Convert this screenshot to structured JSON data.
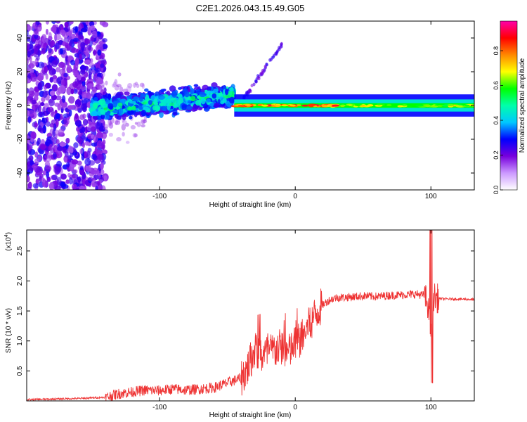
{
  "title": "C2E1.2026.043.15.49.G05",
  "chart_data": [
    {
      "type": "heatmap",
      "name": "spectrogram",
      "xlabel": "Height of straight line (km)",
      "ylabel": "Frequency (Hz)",
      "xlim": [
        -198,
        132
      ],
      "ylim": [
        -50,
        50
      ],
      "xticks": [
        -100,
        0,
        100
      ],
      "xtick_labels": [
        "-100",
        "0",
        "100"
      ],
      "yticks": [
        -40,
        -20,
        0,
        20,
        40
      ],
      "ytick_labels": [
        "-40",
        "-20",
        "0",
        "20",
        "40"
      ],
      "colorbar": {
        "label": "Normalized spectral amplitude",
        "range": [
          0,
          0.97
        ],
        "ticks": [
          0.0,
          0.2,
          0.4,
          0.6,
          0.8
        ],
        "tick_labels": [
          "0.0",
          "0.2",
          "0.4",
          "0.6",
          "0.8"
        ],
        "colormap": [
          "#ffffff",
          "#cc99ff",
          "#7700dd",
          "#0000ff",
          "#00c8ff",
          "#00ffaa",
          "#00ff00",
          "#ffff00",
          "#ff8800",
          "#ff0000",
          "#ff00aa"
        ]
      },
      "regions": [
        {
          "label": "noise",
          "x_range": [
            -198,
            -140
          ],
          "freq_range": [
            -50,
            50
          ],
          "amplitude": 0.05
        },
        {
          "label": "turbulent signal",
          "x_range": [
            -150,
            -45
          ],
          "freq_range": [
            -15,
            15
          ],
          "amplitude": 0.3
        },
        {
          "label": "stable tone",
          "x_range": [
            -45,
            132
          ],
          "freq_center": 0,
          "freq_width": 3,
          "amplitude": 0.85
        }
      ]
    },
    {
      "type": "line",
      "name": "snr",
      "xlabel": "Height of straight line (km)",
      "ylabel": "SNR (10 * v/v)",
      "y_scale_label": "(x10",
      "y_scale_exponent": "4",
      "xlim": [
        -198,
        132
      ],
      "ylim": [
        0,
        2.85
      ],
      "xticks": [
        -100,
        0,
        100
      ],
      "xtick_labels": [
        "-100",
        "0",
        "100"
      ],
      "yticks": [
        0.5,
        1.0,
        1.5,
        2.0,
        2.5
      ],
      "ytick_labels": [
        "0.5",
        "1.0",
        "1.5",
        "2.0",
        "2.5"
      ],
      "line_color": "#ee3333",
      "series": [
        {
          "name": "SNR",
          "x": [
            -198,
            -180,
            -160,
            -140,
            -130,
            -120,
            -110,
            -100,
            -90,
            -80,
            -70,
            -60,
            -50,
            -40,
            -35,
            -30,
            -25,
            -20,
            -15,
            -10,
            -5,
            0,
            5,
            10,
            15,
            20,
            25,
            30,
            40,
            50,
            60,
            70,
            80,
            90,
            95,
            98,
            100,
            102,
            105,
            110,
            120,
            132
          ],
          "y": [
            0.02,
            0.03,
            0.04,
            0.06,
            0.12,
            0.15,
            0.18,
            0.17,
            0.2,
            0.18,
            0.2,
            0.22,
            0.3,
            0.38,
            0.55,
            0.85,
            0.75,
            0.8,
            0.85,
            0.9,
            0.8,
            0.95,
            1.05,
            1.25,
            1.45,
            1.6,
            1.68,
            1.72,
            1.73,
            1.75,
            1.74,
            1.76,
            1.77,
            1.78,
            1.76,
            1.6,
            1.0,
            1.74,
            1.71,
            1.7,
            1.7,
            1.69
          ]
        }
      ]
    }
  ]
}
